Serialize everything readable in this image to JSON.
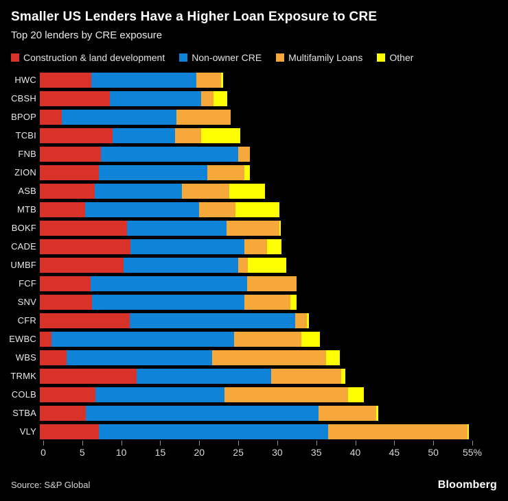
{
  "header": {
    "title": "Smaller US Lenders Have a Higher Loan Exposure to CRE",
    "subtitle": "Top 20 lenders by CRE exposure"
  },
  "footer": {
    "source": "Source: S&P Global",
    "brand": "Bloomberg"
  },
  "colors": {
    "background": "#000000",
    "construction": "#d93228",
    "non_owner_cre": "#0e83d8",
    "multifamily": "#f6a93a",
    "other": "#fdfe02",
    "tick": "#8f8f8f",
    "text": "#e8e8e8"
  },
  "chart_data": {
    "type": "bar",
    "variant": "horizontal-stacked",
    "title": "Smaller US Lenders Have a Higher Loan Exposure to CRE",
    "subtitle": "Top 20 lenders by CRE exposure",
    "xlabel": "",
    "ylabel": "",
    "unit": "%",
    "xlim": [
      0,
      55
    ],
    "x_ticks": [
      0,
      5,
      10,
      15,
      20,
      25,
      30,
      35,
      40,
      45,
      50,
      55
    ],
    "last_tick_label": "55%",
    "legend_position": "top",
    "grid": false,
    "series": [
      {
        "name": "Construction & land development",
        "color": "#d93228"
      },
      {
        "name": "Non-owner CRE",
        "color": "#0e83d8"
      },
      {
        "name": "Multifamily Loans",
        "color": "#f6a93a"
      },
      {
        "name": "Other",
        "color": "#fdfe02"
      }
    ],
    "banks": [
      {
        "label": "HWC",
        "values": [
          6.6,
          13.5,
          3.1,
          0.3
        ],
        "total": 23.5
      },
      {
        "label": "CBSH",
        "values": [
          9.0,
          11.7,
          1.6,
          1.7
        ],
        "total": 24.0
      },
      {
        "label": "BPOP",
        "values": [
          2.8,
          14.7,
          7.0,
          0
        ],
        "total": 24.5
      },
      {
        "label": "TCBI",
        "values": [
          9.3,
          8.0,
          3.4,
          5.0
        ],
        "total": 25.7
      },
      {
        "label": "FNB",
        "values": [
          7.8,
          17.6,
          1.5,
          0
        ],
        "total": 26.9
      },
      {
        "label": "ZION",
        "values": [
          7.6,
          13.9,
          4.7,
          0.7
        ],
        "total": 26.9
      },
      {
        "label": "ASB",
        "values": [
          7.0,
          11.2,
          6.1,
          4.6
        ],
        "total": 28.9
      },
      {
        "label": "MTB",
        "values": [
          5.8,
          14.6,
          4.7,
          5.6
        ],
        "total": 30.7
      },
      {
        "label": "BOKF",
        "values": [
          11.2,
          12.7,
          6.8,
          0.2
        ],
        "total": 30.9
      },
      {
        "label": "CADE",
        "values": [
          11.6,
          14.6,
          2.9,
          1.9
        ],
        "total": 31.0
      },
      {
        "label": "UMBF",
        "values": [
          10.7,
          14.7,
          1.3,
          4.9
        ],
        "total": 31.6
      },
      {
        "label": "FCF",
        "values": [
          6.5,
          20.1,
          6.3,
          0
        ],
        "total": 32.9
      },
      {
        "label": "SNV",
        "values": [
          6.7,
          19.5,
          5.9,
          0.8
        ],
        "total": 32.9
      },
      {
        "label": "CFR",
        "values": [
          11.5,
          21.2,
          1.5,
          0.3
        ],
        "total": 34.5
      },
      {
        "label": "EWBC",
        "values": [
          1.5,
          23.4,
          8.6,
          2.4
        ],
        "total": 35.9
      },
      {
        "label": "WBS",
        "values": [
          3.4,
          18.7,
          14.6,
          1.8
        ],
        "total": 38.5
      },
      {
        "label": "TRMK",
        "values": [
          12.4,
          17.3,
          8.9,
          0.6
        ],
        "total": 39.2
      },
      {
        "label": "COLB",
        "values": [
          7.1,
          16.6,
          15.8,
          2.0
        ],
        "total": 41.5
      },
      {
        "label": "STBA",
        "values": [
          5.9,
          29.8,
          7.4,
          0.3
        ],
        "total": 43.4
      },
      {
        "label": "VLY",
        "values": [
          7.6,
          29.4,
          17.8,
          0.2
        ],
        "total": 55.0
      }
    ]
  }
}
